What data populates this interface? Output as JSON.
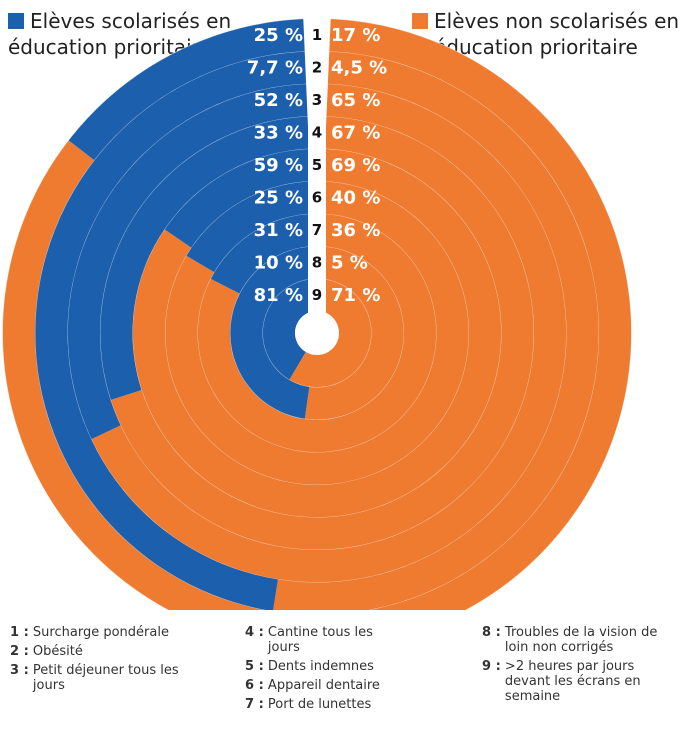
{
  "colors": {
    "series_a": "#1c5fac",
    "series_b": "#ee7b30",
    "bg": "#ffffff"
  },
  "chart_data": {
    "type": "radial-bar",
    "title": "",
    "series": [
      {
        "name": "Elèves scolarisés en éducation prioritaire",
        "labels": [
          "25 %",
          "7,7 %",
          "52 %",
          "33 %",
          "59 %",
          "25 %",
          "31 %",
          "10 %",
          "81 %"
        ],
        "values": [
          25,
          7.7,
          52,
          33,
          59,
          25,
          31,
          10,
          81
        ]
      },
      {
        "name": "Elèves non scolarisés en éducation prioritaire",
        "labels": [
          "17 %",
          "4,5 %",
          "65 %",
          "67 %",
          "69 %",
          "40 %",
          "36 %",
          "5 %",
          "71 %"
        ],
        "values": [
          17,
          4.5,
          65,
          67,
          69,
          40,
          36,
          5,
          71
        ]
      }
    ],
    "ring_numbers": [
      "1",
      "2",
      "3",
      "4",
      "5",
      "6",
      "7",
      "8",
      "9"
    ]
  },
  "legend": {
    "left_line1": "Elèves scolarisés en",
    "left_line2": "éducation prioritaire",
    "right_line1": "Elèves non scolarisés en",
    "right_line2": "éducation prioritaire"
  },
  "footnotes": [
    {
      "num": "1 :",
      "text": "Surcharge pondérale"
    },
    {
      "num": "2 :",
      "text": "Obésité"
    },
    {
      "num": "3 :",
      "text": "Petit déjeuner tous les jours"
    },
    {
      "num": "4 :",
      "text": "Cantine tous les jours"
    },
    {
      "num": "5 :",
      "text": "Dents indemnes"
    },
    {
      "num": "6 :",
      "text": "Appareil dentaire"
    },
    {
      "num": "7 :",
      "text": "Port de lunettes"
    },
    {
      "num": "8 :",
      "text": "Troubles de la vision de loin non corrigés"
    },
    {
      "num": "9 :",
      "text": ">2 heures par jours devant les écrans en semaine"
    }
  ]
}
